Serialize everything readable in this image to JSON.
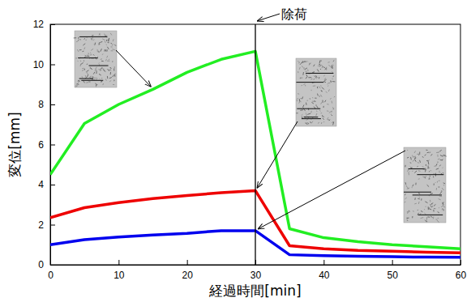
{
  "chart_data": {
    "type": "line",
    "x_label": "経過時間[min]",
    "y_label": "変位[mm]",
    "x": [
      0,
      5,
      10,
      15,
      20,
      25,
      30,
      35,
      40,
      45,
      50,
      55,
      60
    ],
    "series": [
      {
        "color": "#22ee22",
        "values": [
          4.5,
          7.05,
          8.0,
          8.75,
          9.6,
          10.25,
          10.65,
          1.8,
          1.35,
          1.15,
          1.0,
          0.9,
          0.8
        ]
      },
      {
        "color": "#ee0000",
        "values": [
          2.35,
          2.85,
          3.1,
          3.3,
          3.45,
          3.6,
          3.7,
          0.95,
          0.8,
          0.72,
          0.68,
          0.63,
          0.6
        ]
      },
      {
        "color": "#0000ee",
        "values": [
          1.0,
          1.25,
          1.38,
          1.48,
          1.57,
          1.7,
          1.7,
          0.5,
          0.45,
          0.42,
          0.4,
          0.38,
          0.37
        ]
      }
    ],
    "xlim": [
      0,
      60
    ],
    "xticks": [
      0,
      10,
      20,
      30,
      40,
      50,
      60
    ],
    "ylim": [
      0,
      12
    ],
    "yticks": [
      0,
      2,
      4,
      6,
      8,
      10,
      12
    ],
    "grid": false,
    "annotations": [
      {
        "text": "除荷",
        "x": 30
      }
    ]
  }
}
